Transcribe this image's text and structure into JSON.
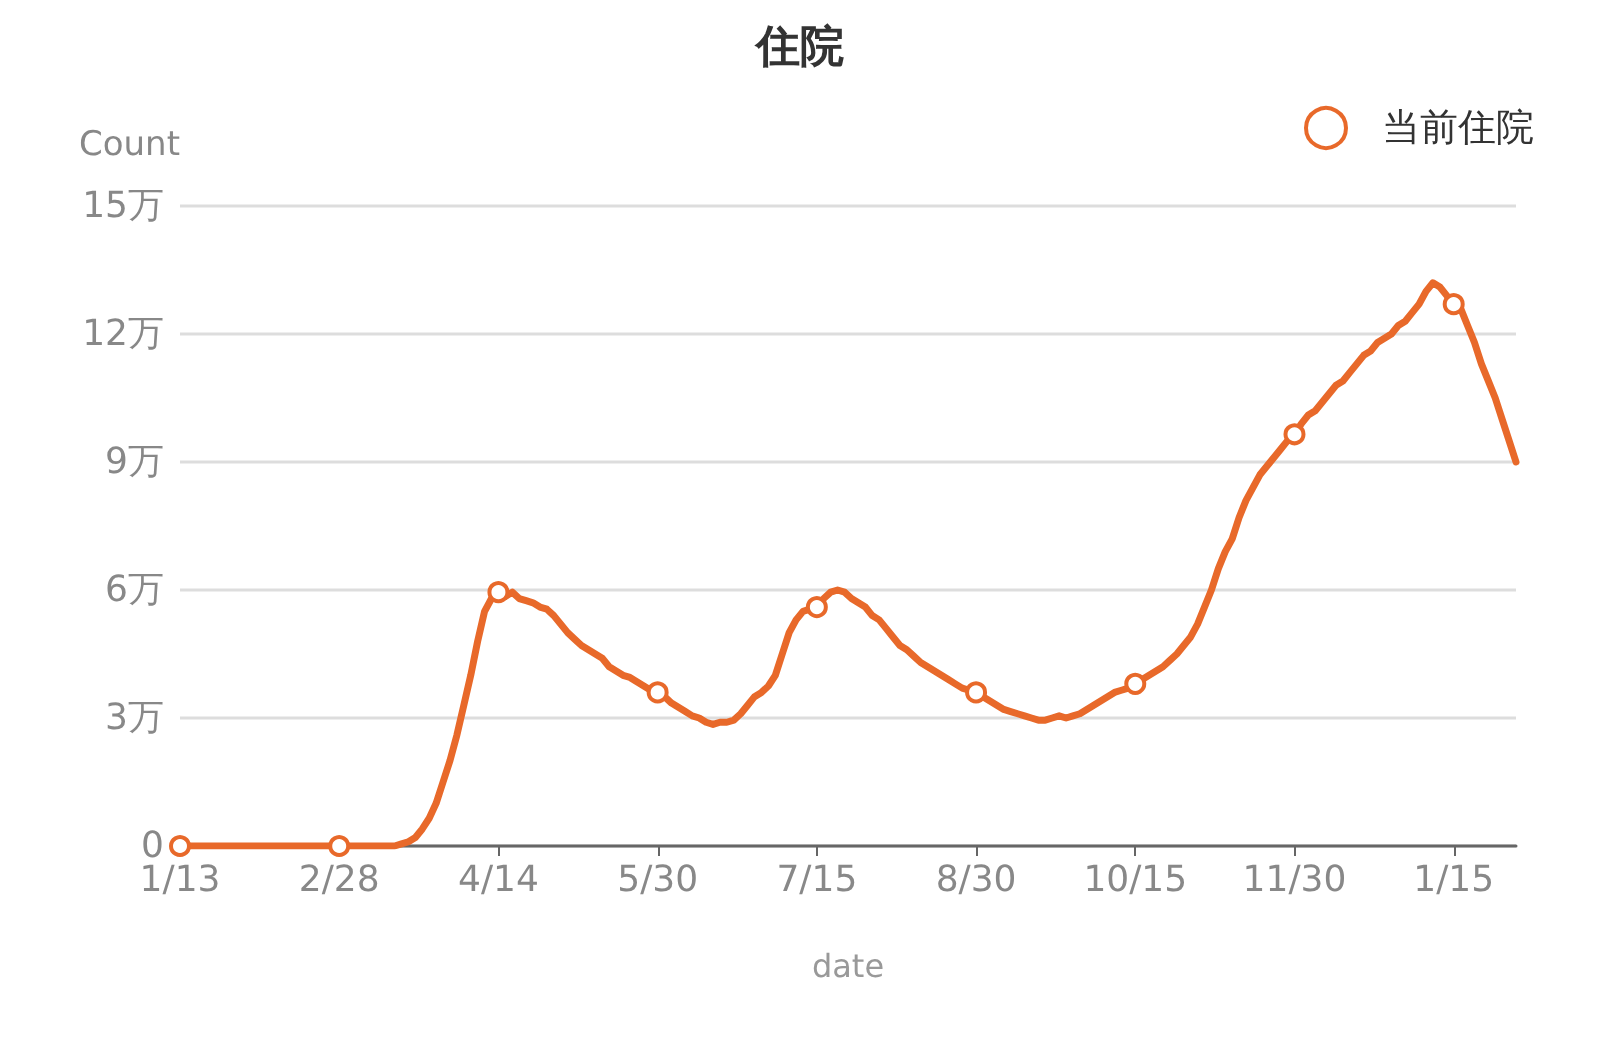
{
  "chart_data": {
    "type": "line",
    "title": "住院",
    "xlabel": "date",
    "ylabel": "Count",
    "categories": [
      "1/13",
      null,
      null,
      null,
      null,
      null,
      null,
      null,
      null,
      null,
      null,
      null,
      null,
      null,
      null,
      null,
      null,
      null,
      null,
      null,
      null,
      null,
      null,
      "2/28",
      null,
      null,
      null,
      null,
      null,
      null,
      null,
      null,
      null,
      null,
      null,
      null,
      null,
      null,
      null,
      null,
      null,
      null,
      null,
      null,
      null,
      null,
      "4/14",
      null,
      null,
      null,
      null,
      null,
      null,
      null,
      null,
      null,
      null,
      null,
      null,
      null,
      null,
      null,
      null,
      null,
      null,
      null,
      null,
      null,
      null,
      "5/30",
      null,
      null,
      null,
      null,
      null,
      null,
      null,
      null,
      null,
      null,
      null,
      null,
      null,
      null,
      null,
      null,
      null,
      null,
      null,
      null,
      null,
      null,
      "7/15",
      null,
      null,
      null,
      null,
      null,
      null,
      null,
      null,
      null,
      null,
      null,
      null,
      null,
      null,
      null,
      null,
      null,
      null,
      null,
      null,
      null,
      null,
      "8/30",
      null,
      null,
      null,
      null,
      null,
      null,
      null,
      null,
      null,
      null,
      null,
      null,
      null,
      null,
      null,
      null,
      null,
      null,
      null,
      null,
      null,
      null,
      "10/15",
      null,
      null,
      null,
      null,
      null,
      null,
      null,
      null,
      null,
      null,
      null,
      null,
      null,
      null,
      null,
      null,
      null,
      null,
      null,
      null,
      null,
      null,
      "11/30",
      null,
      null,
      null,
      null,
      null,
      null,
      null,
      null,
      null,
      null,
      null,
      null,
      null,
      null,
      null,
      null,
      null,
      null,
      null,
      null,
      null,
      null,
      "1/15",
      null,
      null,
      null,
      null,
      null,
      null,
      null,
      null,
      null
    ],
    "series": [
      {
        "name": "当前住院",
        "color": "#e8692a",
        "values": [
          0,
          0,
          0,
          0,
          0,
          0,
          0,
          0,
          0,
          0,
          0,
          0,
          0,
          0,
          0,
          0,
          0,
          0,
          0,
          0,
          0,
          0,
          0,
          0,
          0,
          0,
          0,
          0,
          0,
          0,
          0,
          0,
          0.05,
          0.1,
          0.2,
          0.4,
          0.65,
          1,
          1.5,
          2,
          2.6,
          3.3,
          4,
          4.8,
          5.5,
          5.8,
          5.95,
          5.85,
          5.95,
          5.8,
          5.75,
          5.7,
          5.6,
          5.55,
          5.4,
          5.2,
          5,
          4.85,
          4.7,
          4.6,
          4.5,
          4.4,
          4.2,
          4.1,
          4,
          3.95,
          3.85,
          3.75,
          3.65,
          3.6,
          3.5,
          3.35,
          3.25,
          3.15,
          3.05,
          3,
          2.9,
          2.85,
          2.9,
          2.9,
          2.95,
          3.1,
          3.3,
          3.5,
          3.6,
          3.75,
          4,
          4.5,
          5,
          5.3,
          5.5,
          5.55,
          5.6,
          5.8,
          5.95,
          6,
          5.95,
          5.8,
          5.7,
          5.6,
          5.4,
          5.3,
          5.1,
          4.9,
          4.7,
          4.6,
          4.45,
          4.3,
          4.2,
          4.1,
          4,
          3.9,
          3.8,
          3.7,
          3.65,
          3.6,
          3.5,
          3.4,
          3.3,
          3.2,
          3.15,
          3.1,
          3.05,
          3,
          2.95,
          2.95,
          3,
          3.05,
          3,
          3.05,
          3.1,
          3.2,
          3.3,
          3.4,
          3.5,
          3.6,
          3.65,
          3.7,
          3.8,
          3.9,
          4,
          4.1,
          4.2,
          4.35,
          4.5,
          4.7,
          4.9,
          5.2,
          5.6,
          6,
          6.5,
          6.9,
          7.2,
          7.7,
          8.1,
          8.4,
          8.7,
          8.9,
          9.1,
          9.3,
          9.5,
          9.65,
          9.9,
          10.1,
          10.2,
          10.4,
          10.6,
          10.8,
          10.9,
          11.1,
          11.3,
          11.5,
          11.6,
          11.8,
          11.9,
          12,
          12.2,
          12.3,
          12.5,
          12.7,
          13,
          13.2,
          13.1,
          12.9,
          12.7,
          12.6,
          12.2,
          11.8,
          11.3,
          10.9,
          10.5,
          10,
          9.5,
          9
        ]
      }
    ],
    "ylim": [
      0,
      15
    ],
    "yticks": [
      0,
      {
        "value": 3,
        "label": "3万"
      },
      {
        "value": 6,
        "label": "6万"
      },
      {
        "value": 9,
        "label": "9万"
      },
      {
        "value": 12,
        "label": "12万"
      },
      {
        "value": 15,
        "label": "15万"
      }
    ],
    "grid": "y",
    "legend": "top right",
    "line_style": "solid"
  }
}
